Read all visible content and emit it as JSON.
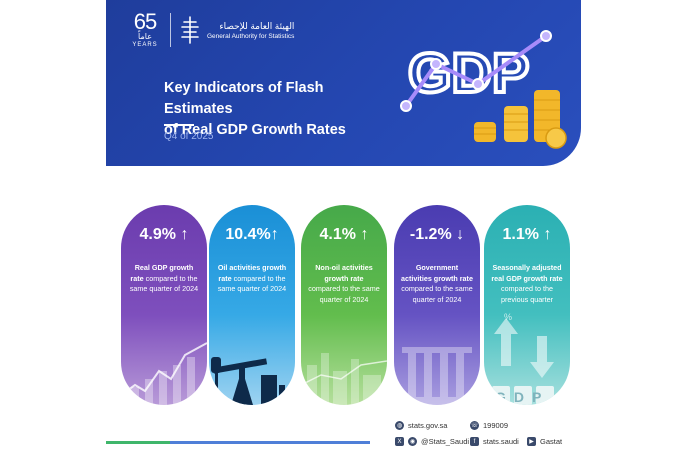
{
  "header": {
    "years_number": "65",
    "years_arabic": "عاماً",
    "years_label": "YEARS",
    "org_arabic": "الهيئة العامة للإحصاء",
    "org_english": "General Authority for Statistics",
    "title_line1": "Key Indicators of Flash Estimates",
    "title_line2": "of Real GDP Growth Rates",
    "period": "Q4 of 2025",
    "art_text": "GDP"
  },
  "cards": [
    {
      "value": "4.9%",
      "trend": "up",
      "bold": "Real GDP growth rate",
      "rest": "compared to the same quarter of 2024",
      "color": "#6b3cae"
    },
    {
      "value": "10.4%",
      "trend": "up",
      "bold": "Oil activities growth rate",
      "rest": "compared to the same quarter of 2024",
      "color": "#1a8fd6"
    },
    {
      "value": "4.1%",
      "trend": "up",
      "bold": "Non-oil activities growth rate",
      "rest": "compared to the same quarter of 2024",
      "color": "#46a94a"
    },
    {
      "value": "-1.2%",
      "trend": "down",
      "bold": "Government activities growth rate",
      "rest": "compared to the same quarter of 2024",
      "color": "#4a3cb1"
    },
    {
      "value": "1.1%",
      "trend": "up",
      "bold": "Seasonally adjusted real GDP growth rate",
      "rest": "compared to the previous quarter",
      "color": "#2bb0b3"
    }
  ],
  "card5_scene_text": "GDP",
  "footer": {
    "website": "stats.gov.sa",
    "phone": "199009",
    "social_x": "@Stats_Saudi",
    "social_fb": "stats.saudi",
    "social_yt": "Gastat"
  },
  "icons": {
    "website": "globe-icon",
    "phone": "phone-icon",
    "x": "x-logo-icon",
    "fb": "facebook-icon",
    "yt": "youtube-icon"
  }
}
